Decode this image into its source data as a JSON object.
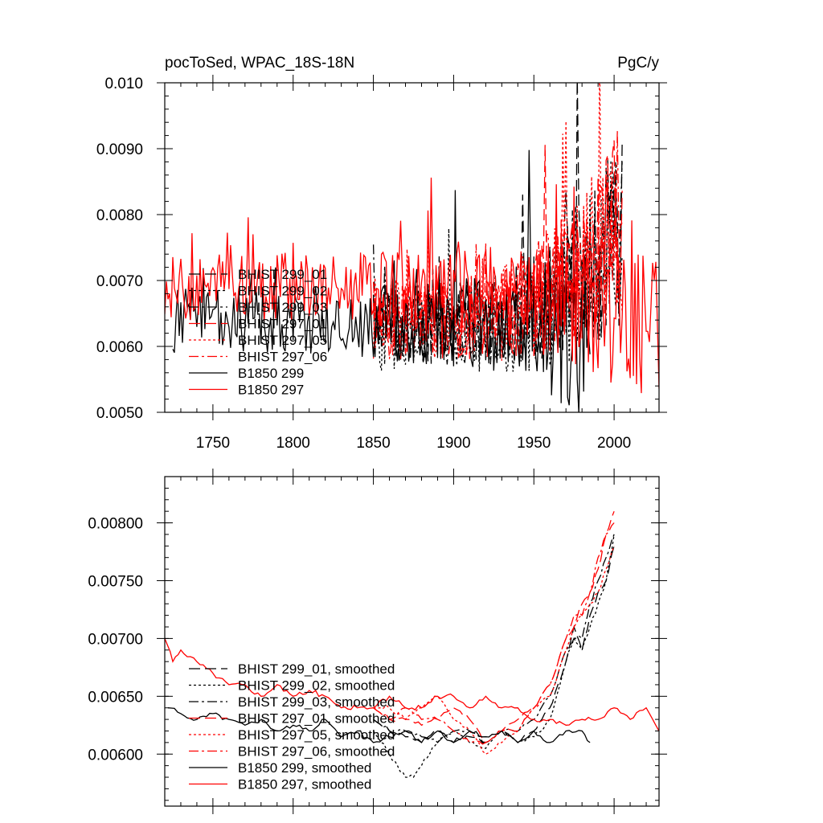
{
  "chart_data": [
    {
      "type": "line",
      "title_left": "pocToSed, WPAC_18S-18N",
      "title_right": "PgC/y",
      "xlim": [
        1720,
        2028
      ],
      "ylim": [
        0.005,
        0.01
      ],
      "xticks": [
        1750,
        1800,
        1850,
        1900,
        1950,
        2000
      ],
      "xtick_labels": [
        "1750",
        "1800",
        "1850",
        "1900",
        "1950",
        "2000"
      ],
      "yticks": [
        0.005,
        0.006,
        0.007,
        0.008,
        0.009,
        0.01
      ],
      "ytick_labels": [
        "0.0050",
        "0.0060",
        "0.0070",
        "0.0080",
        "0.0090",
        "0.010"
      ],
      "legend_position": "lower-left",
      "series": [
        {
          "name": "BHIST 299_01",
          "color": "#000000",
          "dash": "longdash",
          "years": [
            1850,
            2005
          ],
          "start": 0.0063,
          "end": 0.0079,
          "spread": 0.0006,
          "seed": 11
        },
        {
          "name": "BHIST 299_02",
          "color": "#000000",
          "dash": "dot",
          "years": [
            1850,
            2005
          ],
          "start": 0.0062,
          "end": 0.0078,
          "spread": 0.0006,
          "seed": 23
        },
        {
          "name": "BHIST 299_03",
          "color": "#000000",
          "dash": "dashdot",
          "years": [
            1850,
            2005
          ],
          "start": 0.0063,
          "end": 0.008,
          "spread": 0.0006,
          "seed": 37
        },
        {
          "name": "BHIST 297_01",
          "color": "#ff0000",
          "dash": "longdash",
          "years": [
            1850,
            2005
          ],
          "start": 0.0064,
          "end": 0.0081,
          "spread": 0.0006,
          "seed": 41
        },
        {
          "name": "BHIST 297_05",
          "color": "#ff0000",
          "dash": "dot",
          "years": [
            1850,
            2005
          ],
          "start": 0.0064,
          "end": 0.0079,
          "spread": 0.0006,
          "seed": 53
        },
        {
          "name": "BHIST 297_06",
          "color": "#ff0000",
          "dash": "dashdot",
          "years": [
            1850,
            2005
          ],
          "start": 0.0064,
          "end": 0.008,
          "spread": 0.0006,
          "seed": 67
        },
        {
          "name": "B1850 299",
          "color": "#000000",
          "dash": "solid",
          "years": [
            1725,
            1985
          ],
          "start": 0.0064,
          "end": 0.0062,
          "spread": 0.0005,
          "seed": 71
        },
        {
          "name": "B1850 297",
          "color": "#ff0000",
          "dash": "solid",
          "years": [
            1720,
            2028
          ],
          "start": 0.0069,
          "end": 0.0063,
          "spread": 0.0005,
          "seed": 83
        }
      ]
    },
    {
      "type": "line",
      "xlim": [
        1720,
        2028
      ],
      "ylim": [
        0.00555,
        0.0084
      ],
      "xticks": [
        1750,
        1800,
        1850,
        1900,
        1950,
        2000
      ],
      "yticks": [
        0.006,
        0.0065,
        0.007,
        0.0075,
        0.008
      ],
      "ytick_labels": [
        "0.00600",
        "0.00650",
        "0.00700",
        "0.00750",
        "0.00800"
      ],
      "legend_position": "lower-left",
      "series": [
        {
          "name": "BHIST 299_01, smoothed",
          "color": "#000000",
          "dash": "longdash",
          "points": [
            [
              1850,
              0.0063
            ],
            [
              1860,
              0.0062
            ],
            [
              1870,
              0.00615
            ],
            [
              1880,
              0.0061
            ],
            [
              1890,
              0.0062
            ],
            [
              1900,
              0.0061
            ],
            [
              1910,
              0.00615
            ],
            [
              1920,
              0.0061
            ],
            [
              1930,
              0.0062
            ],
            [
              1940,
              0.0061
            ],
            [
              1950,
              0.0062
            ],
            [
              1955,
              0.0063
            ],
            [
              1960,
              0.0064
            ],
            [
              1965,
              0.0066
            ],
            [
              1970,
              0.0068
            ],
            [
              1975,
              0.0071
            ],
            [
              1980,
              0.0069
            ],
            [
              1985,
              0.0072
            ],
            [
              1990,
              0.0074
            ],
            [
              1995,
              0.0075
            ],
            [
              2000,
              0.0078
            ]
          ]
        },
        {
          "name": "BHIST 299_02, smoothed",
          "color": "#000000",
          "dash": "dot",
          "points": [
            [
              1850,
              0.0062
            ],
            [
              1855,
              0.0061
            ],
            [
              1860,
              0.006
            ],
            [
              1865,
              0.0059
            ],
            [
              1870,
              0.0058
            ],
            [
              1875,
              0.0058
            ],
            [
              1880,
              0.0059
            ],
            [
              1885,
              0.006
            ],
            [
              1890,
              0.0061
            ],
            [
              1900,
              0.0062
            ],
            [
              1910,
              0.0061
            ],
            [
              1920,
              0.00605
            ],
            [
              1930,
              0.0062
            ],
            [
              1940,
              0.0061
            ],
            [
              1950,
              0.00615
            ],
            [
              1960,
              0.0063
            ],
            [
              1970,
              0.0068
            ],
            [
              1975,
              0.007
            ],
            [
              1980,
              0.0069
            ],
            [
              1985,
              0.0071
            ],
            [
              1990,
              0.0073
            ],
            [
              1995,
              0.0075
            ],
            [
              2000,
              0.0079
            ]
          ]
        },
        {
          "name": "BHIST 299_03, smoothed",
          "color": "#000000",
          "dash": "dashdot",
          "points": [
            [
              1850,
              0.0063
            ],
            [
              1860,
              0.0062
            ],
            [
              1870,
              0.0062
            ],
            [
              1880,
              0.00615
            ],
            [
              1890,
              0.0061
            ],
            [
              1900,
              0.0062
            ],
            [
              1910,
              0.0062
            ],
            [
              1920,
              0.0061
            ],
            [
              1930,
              0.0062
            ],
            [
              1940,
              0.0062
            ],
            [
              1950,
              0.0063
            ],
            [
              1960,
              0.0065
            ],
            [
              1970,
              0.0069
            ],
            [
              1975,
              0.007
            ],
            [
              1980,
              0.007
            ],
            [
              1985,
              0.0073
            ],
            [
              1990,
              0.0075
            ],
            [
              1995,
              0.0077
            ],
            [
              2000,
              0.0079
            ]
          ]
        },
        {
          "name": "BHIST 297_01, smoothed",
          "color": "#ff0000",
          "dash": "longdash",
          "points": [
            [
              1850,
              0.0064
            ],
            [
              1860,
              0.0063
            ],
            [
              1870,
              0.0063
            ],
            [
              1880,
              0.00625
            ],
            [
              1890,
              0.0063
            ],
            [
              1900,
              0.0064
            ],
            [
              1910,
              0.0063
            ],
            [
              1920,
              0.0061
            ],
            [
              1930,
              0.0062
            ],
            [
              1940,
              0.0063
            ],
            [
              1950,
              0.0064
            ],
            [
              1960,
              0.0066
            ],
            [
              1970,
              0.007
            ],
            [
              1975,
              0.0071
            ],
            [
              1980,
              0.0073
            ],
            [
              1985,
              0.0074
            ],
            [
              1990,
              0.0076
            ],
            [
              1995,
              0.0079
            ],
            [
              2000,
              0.0081
            ]
          ]
        },
        {
          "name": "BHIST 297_05, smoothed",
          "color": "#ff0000",
          "dash": "dot",
          "points": [
            [
              1850,
              0.0064
            ],
            [
              1860,
              0.0064
            ],
            [
              1870,
              0.0063
            ],
            [
              1880,
              0.0064
            ],
            [
              1890,
              0.0065
            ],
            [
              1900,
              0.0063
            ],
            [
              1910,
              0.0062
            ],
            [
              1920,
              0.006
            ],
            [
              1930,
              0.0061
            ],
            [
              1940,
              0.0062
            ],
            [
              1950,
              0.0064
            ],
            [
              1960,
              0.0065
            ],
            [
              1970,
              0.0069
            ],
            [
              1975,
              0.0071
            ],
            [
              1980,
              0.0072
            ],
            [
              1985,
              0.0073
            ],
            [
              1990,
              0.0074
            ],
            [
              1995,
              0.0076
            ],
            [
              2000,
              0.0078
            ]
          ]
        },
        {
          "name": "BHIST 297_06, smoothed",
          "color": "#ff0000",
          "dash": "dashdot",
          "points": [
            [
              1850,
              0.0064
            ],
            [
              1860,
              0.0063
            ],
            [
              1870,
              0.0064
            ],
            [
              1880,
              0.0063
            ],
            [
              1890,
              0.0063
            ],
            [
              1900,
              0.0062
            ],
            [
              1910,
              0.0061
            ],
            [
              1920,
              0.0061
            ],
            [
              1930,
              0.0062
            ],
            [
              1940,
              0.0062
            ],
            [
              1950,
              0.0064
            ],
            [
              1960,
              0.0066
            ],
            [
              1970,
              0.007
            ],
            [
              1975,
              0.0072
            ],
            [
              1980,
              0.0072
            ],
            [
              1985,
              0.0074
            ],
            [
              1990,
              0.0077
            ],
            [
              1995,
              0.0079
            ],
            [
              2000,
              0.008
            ]
          ]
        },
        {
          "name": "B1850 299, smoothed",
          "color": "#000000",
          "dash": "solid",
          "points": [
            [
              1722,
              0.0064
            ],
            [
              1730,
              0.00635
            ],
            [
              1740,
              0.0063
            ],
            [
              1750,
              0.00635
            ],
            [
              1760,
              0.0063
            ],
            [
              1770,
              0.00625
            ],
            [
              1780,
              0.0063
            ],
            [
              1790,
              0.0062
            ],
            [
              1800,
              0.00625
            ],
            [
              1810,
              0.0062
            ],
            [
              1820,
              0.0063
            ],
            [
              1830,
              0.00615
            ],
            [
              1840,
              0.0062
            ],
            [
              1850,
              0.0061
            ],
            [
              1860,
              0.00615
            ],
            [
              1870,
              0.0062
            ],
            [
              1880,
              0.0061
            ],
            [
              1890,
              0.0062
            ],
            [
              1900,
              0.0061
            ],
            [
              1910,
              0.0062
            ],
            [
              1920,
              0.00615
            ],
            [
              1930,
              0.0062
            ],
            [
              1940,
              0.0061
            ],
            [
              1950,
              0.0062
            ],
            [
              1960,
              0.0061
            ],
            [
              1970,
              0.0062
            ],
            [
              1980,
              0.0062
            ],
            [
              1985,
              0.0061
            ]
          ]
        },
        {
          "name": "B1850 297, smoothed",
          "color": "#ff0000",
          "dash": "solid",
          "points": [
            [
              1720,
              0.007
            ],
            [
              1725,
              0.0068
            ],
            [
              1730,
              0.0069
            ],
            [
              1740,
              0.0068
            ],
            [
              1750,
              0.0067
            ],
            [
              1760,
              0.0066
            ],
            [
              1770,
              0.0066
            ],
            [
              1780,
              0.0065
            ],
            [
              1790,
              0.0066
            ],
            [
              1800,
              0.0065
            ],
            [
              1810,
              0.00655
            ],
            [
              1820,
              0.0065
            ],
            [
              1830,
              0.0064
            ],
            [
              1840,
              0.0064
            ],
            [
              1850,
              0.0064
            ],
            [
              1860,
              0.0065
            ],
            [
              1870,
              0.0064
            ],
            [
              1880,
              0.0064
            ],
            [
              1890,
              0.0065
            ],
            [
              1900,
              0.0065
            ],
            [
              1910,
              0.0064
            ],
            [
              1920,
              0.0065
            ],
            [
              1930,
              0.0064
            ],
            [
              1940,
              0.0064
            ],
            [
              1950,
              0.0063
            ],
            [
              1960,
              0.0063
            ],
            [
              1970,
              0.00625
            ],
            [
              1980,
              0.0063
            ],
            [
              1990,
              0.0063
            ],
            [
              2000,
              0.0064
            ],
            [
              2010,
              0.0063
            ],
            [
              2020,
              0.0064
            ],
            [
              2028,
              0.0062
            ]
          ]
        }
      ]
    }
  ]
}
